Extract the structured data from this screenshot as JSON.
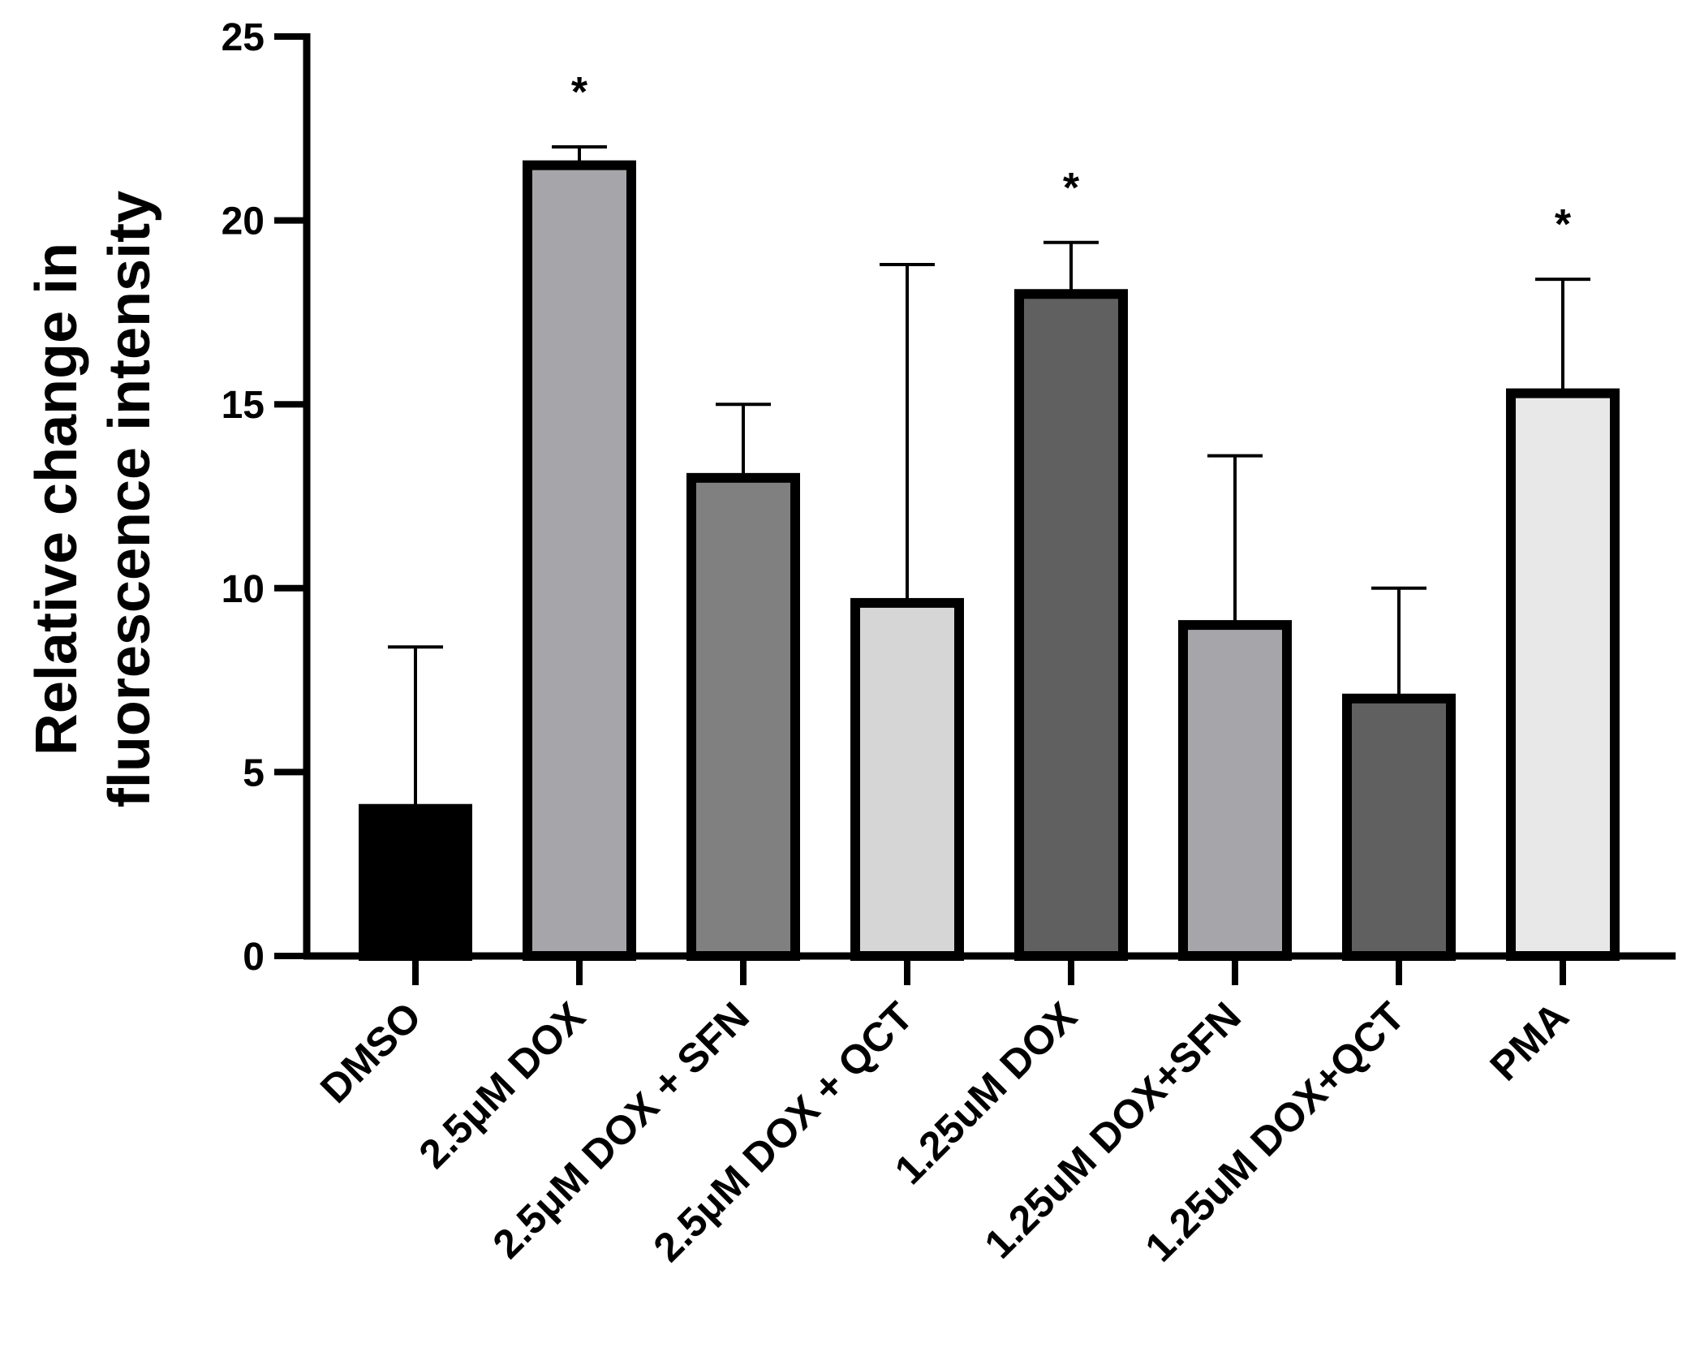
{
  "chart_data": {
    "type": "bar",
    "title": "",
    "xlabel": "",
    "ylabel_lines": [
      "Relative change in",
      "fluorescence intensity"
    ],
    "ylim": [
      0,
      25
    ],
    "yticks": [
      0,
      5,
      10,
      15,
      20,
      25
    ],
    "ytick_labels": [
      "0",
      "5",
      "10",
      "15",
      "20",
      "25"
    ],
    "categories": [
      "DMSO",
      "2.5μM DOX",
      "2.5μM DOX + SFN",
      "2.5μM DOX + QCT",
      "1.25uM DOX",
      "1.25uM DOX+SFN",
      "1.25uM DOX+QCT",
      "PMA"
    ],
    "values": [
      4.0,
      21.5,
      13.0,
      9.6,
      18.0,
      9.0,
      7.0,
      15.3
    ],
    "error_upper": [
      8.4,
      22.0,
      15.0,
      18.8,
      19.4,
      13.6,
      10.0,
      18.4
    ],
    "annotations": [
      "",
      "*",
      "",
      "",
      "*",
      "",
      "",
      "*"
    ],
    "bar_colors": [
      "#000000",
      "#a6a6aa",
      "#808080",
      "#d6d6d6",
      "#606060",
      "#a6a6aa",
      "#606060",
      "#e8e8e8"
    ]
  }
}
